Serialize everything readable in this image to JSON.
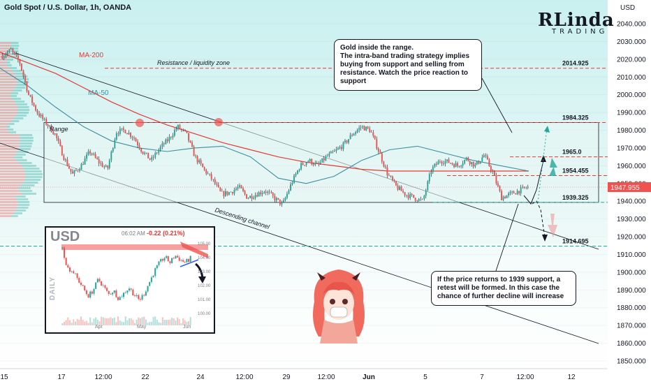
{
  "header": {
    "title": "Gold Spot / U.S. Dollar, 1h, OANDA"
  },
  "logo": {
    "main": "RLinda",
    "sub": "TRADING"
  },
  "axis": {
    "currency": "USD",
    "price_ticks": [
      "2040.000",
      "2030.000",
      "2020.000",
      "2010.000",
      "2000.000",
      "1990.000",
      "1980.000",
      "1970.000",
      "1960.000",
      "1950.000",
      "1940.000",
      "1930.000",
      "1920.000",
      "1910.000",
      "1900.000",
      "1890.000",
      "1880.000",
      "1870.000",
      "1860.000",
      "1850.000"
    ],
    "time_ticks": [
      "15",
      "17",
      "12:00",
      "22",
      "24",
      "12:00",
      "29",
      "12:00",
      "Jun",
      "5",
      "7",
      "12:00",
      "12"
    ],
    "last_price": "1947.955"
  },
  "labels": {
    "ma200": "MA-200",
    "ma50": "MA-50",
    "resistance_zone": "Resistance / liquidity zone",
    "range": "Range",
    "descending_channel": "Descending channel"
  },
  "levels": [
    {
      "price": 2014.925,
      "label": "2014.925",
      "color": "#e53935"
    },
    {
      "price": 1984.325,
      "label": "1984.325",
      "color": "#e53935"
    },
    {
      "price": 1965.0,
      "label": "1965.0",
      "color": "#e53935"
    },
    {
      "price": 1954.455,
      "label": "1954.455",
      "color": "#e53935"
    },
    {
      "price": 1939.325,
      "label": "1939.325",
      "color": "#26a69a"
    },
    {
      "price": 1914.695,
      "label": "1914.695",
      "color": "#26a69a"
    }
  ],
  "callouts": {
    "top": "Gold inside the range.\nThe intra-band trading strategy implies buying from support and selling from resistance. Watch the price reaction to support",
    "bottom": "If the price returns to 1939 support, a retest will be formed. In this case the chance of further decline will increase"
  },
  "inset": {
    "currency": "USD",
    "timeframe": "DAILY",
    "time": "06:02 AM",
    "change": "-0.22 (0.21%)",
    "price_ticks": [
      "105.00",
      "104.00",
      "103.00",
      "102.00",
      "101.00",
      "100.00"
    ],
    "months": [
      "Apr",
      "May",
      "Jun"
    ]
  },
  "colors": {
    "bull": "#26a69a",
    "bear": "#ef5350",
    "ma200": "#e53935",
    "ma50": "#3d8fa0",
    "bg_top": "#d6f4f4",
    "bg_bottom": "#ffffff",
    "range_fill": "#e8f6f2"
  },
  "chart_data": {
    "type": "candlestick",
    "title": "Gold Spot / U.S. Dollar, 1h, OANDA",
    "ylim": [
      1845,
      2050
    ],
    "key_levels": [
      2014.925,
      1984.325,
      1965.0,
      1954.455,
      1939.325,
      1914.695
    ],
    "range": {
      "top": 1984.325,
      "bottom": 1939.325
    },
    "last_price": 1947.955,
    "series": [
      {
        "name": "MA-200",
        "values": [
          2024,
          2018,
          2012,
          2004,
          1996,
          1989,
          1983,
          1978,
          1973,
          1969,
          1965,
          1962,
          1960,
          1958,
          1957,
          1957,
          1957,
          1957,
          1957,
          1957
        ]
      },
      {
        "name": "MA-50",
        "values": [
          2015,
          2005,
          1993,
          1982,
          1974,
          1970,
          1968,
          1970,
          1971,
          1965,
          1953,
          1950,
          1954,
          1963,
          1969,
          1971,
          1967,
          1963,
          1960,
          1957
        ]
      }
    ],
    "price_path": [
      2022,
      2025,
      2018,
      2000,
      1990,
      1984,
      1978,
      1965,
      1955,
      1960,
      1968,
      1962,
      1958,
      1979,
      1980,
      1976,
      1968,
      1963,
      1970,
      1975,
      1982,
      1978,
      1965,
      1958,
      1952,
      1944,
      1945,
      1948,
      1942,
      1944,
      1946,
      1942,
      1938,
      1950,
      1960,
      1963,
      1960,
      1965,
      1968,
      1972,
      1978,
      1982,
      1980,
      1968,
      1955,
      1948,
      1944,
      1942,
      1940,
      1958,
      1963,
      1962,
      1960,
      1964,
      1960,
      1966,
      1956,
      1942,
      1944,
      1946,
      1947.955
    ]
  }
}
